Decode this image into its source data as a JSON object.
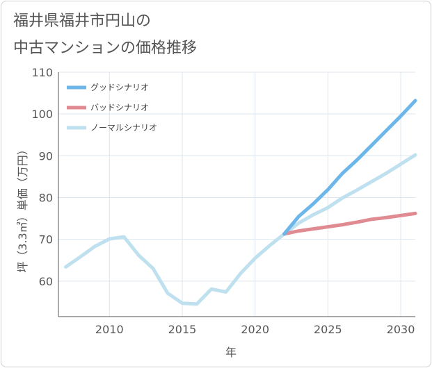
{
  "title_lines": [
    "福井県福井市円山の",
    "中古マンションの価格推移"
  ],
  "chart_data": {
    "type": "line",
    "title": "福井県福井市円山の中古マンションの価格推移",
    "xlabel": "年",
    "ylabel": "坪（3.3㎡）単価（万円）",
    "xlim": [
      2006.5,
      2031
    ],
    "ylim": [
      51.5,
      110
    ],
    "xticks": [
      2010,
      2015,
      2020,
      2025,
      2030
    ],
    "yticks": [
      60,
      70,
      80,
      90,
      100,
      110
    ],
    "grid": true,
    "legend_position": "top-left",
    "series": [
      {
        "name": "グッドシナリオ",
        "color": "#6cb6ea",
        "x": [
          2022,
          2023,
          2024,
          2025,
          2026,
          2027,
          2028,
          2029,
          2030,
          2031
        ],
        "values": [
          71.3,
          75.5,
          78.5,
          81.9,
          85.8,
          89.0,
          92.5,
          96.0,
          99.5,
          103.2
        ]
      },
      {
        "name": "バッドシナリオ",
        "color": "#e08a92",
        "x": [
          2022,
          2023,
          2024,
          2025,
          2026,
          2027,
          2028,
          2029,
          2030,
          2031
        ],
        "values": [
          71.3,
          72.0,
          72.5,
          73.0,
          73.5,
          74.1,
          74.8,
          75.2,
          75.7,
          76.2
        ]
      },
      {
        "name": "ノーマルシナリオ",
        "color": "#bfe0ef",
        "x": [
          2007,
          2008,
          2009,
          2010,
          2011,
          2012,
          2013,
          2014,
          2015,
          2016,
          2017,
          2018,
          2019,
          2020,
          2021,
          2022,
          2023,
          2024,
          2025,
          2026,
          2027,
          2028,
          2029,
          2030,
          2031
        ],
        "values": [
          63.4,
          65.8,
          68.3,
          70.1,
          70.6,
          66.2,
          63.0,
          57.1,
          54.7,
          54.5,
          58.1,
          57.4,
          61.8,
          65.5,
          68.5,
          71.3,
          73.9,
          75.9,
          77.6,
          79.9,
          81.8,
          83.8,
          85.8,
          88.0,
          90.2
        ]
      }
    ]
  }
}
